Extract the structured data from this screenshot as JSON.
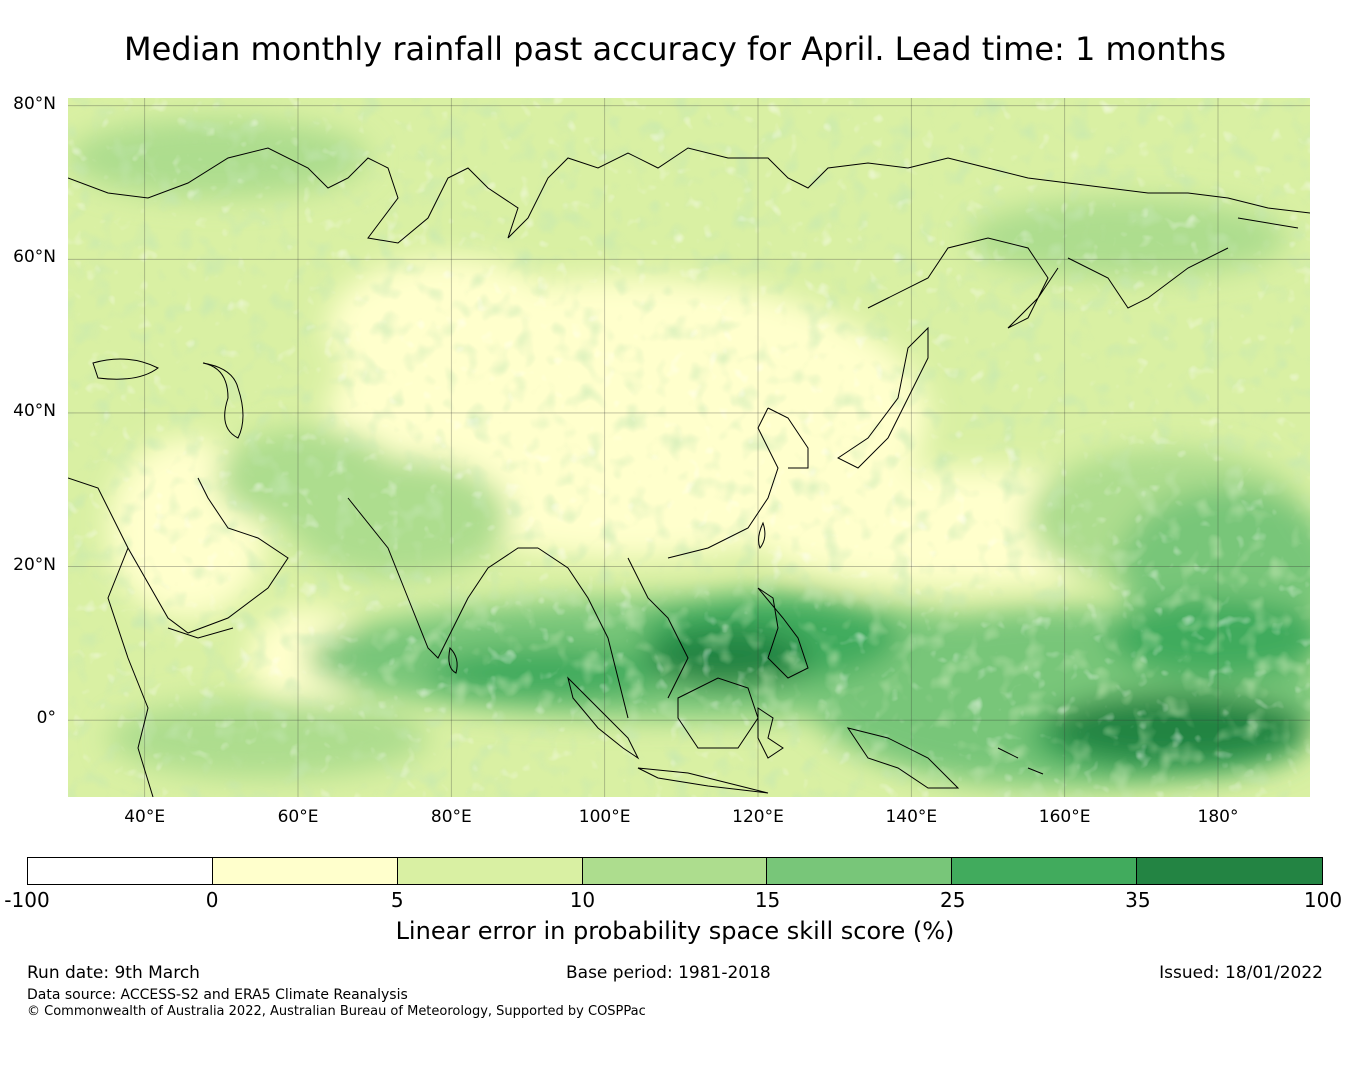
{
  "title": "Median monthly rainfall past accuracy for April. Lead time: 1 months",
  "map": {
    "lat_labels": [
      "80°N",
      "60°N",
      "40°N",
      "20°N",
      "0°"
    ],
    "lon_labels": [
      "40°E",
      "60°E",
      "80°E",
      "100°E",
      "120°E",
      "140°E",
      "160°E",
      "180°"
    ],
    "lon_range": [
      30,
      192
    ],
    "lat_range": [
      -10,
      81
    ]
  },
  "colorbar": {
    "ticks": [
      "-100",
      "0",
      "5",
      "10",
      "15",
      "25",
      "35",
      "100"
    ],
    "colors": [
      "#ffffff",
      "#ffffcc",
      "#d9f0a3",
      "#addd8e",
      "#78c679",
      "#41ab5d",
      "#238443"
    ],
    "label": "Linear error in probability space skill score (%)"
  },
  "footer": {
    "run_date": "Run date: 9th March",
    "base_period": "Base period: 1981-2018",
    "issued": "Issued: 18/01/2022",
    "data_source": "Data source: ACCESS-S2 and ERA5 Climate Reanalysis",
    "copyright": "© Commonwealth of Australia 2022, Australian Bureau of Meteorology, Supported by COSPPac"
  }
}
